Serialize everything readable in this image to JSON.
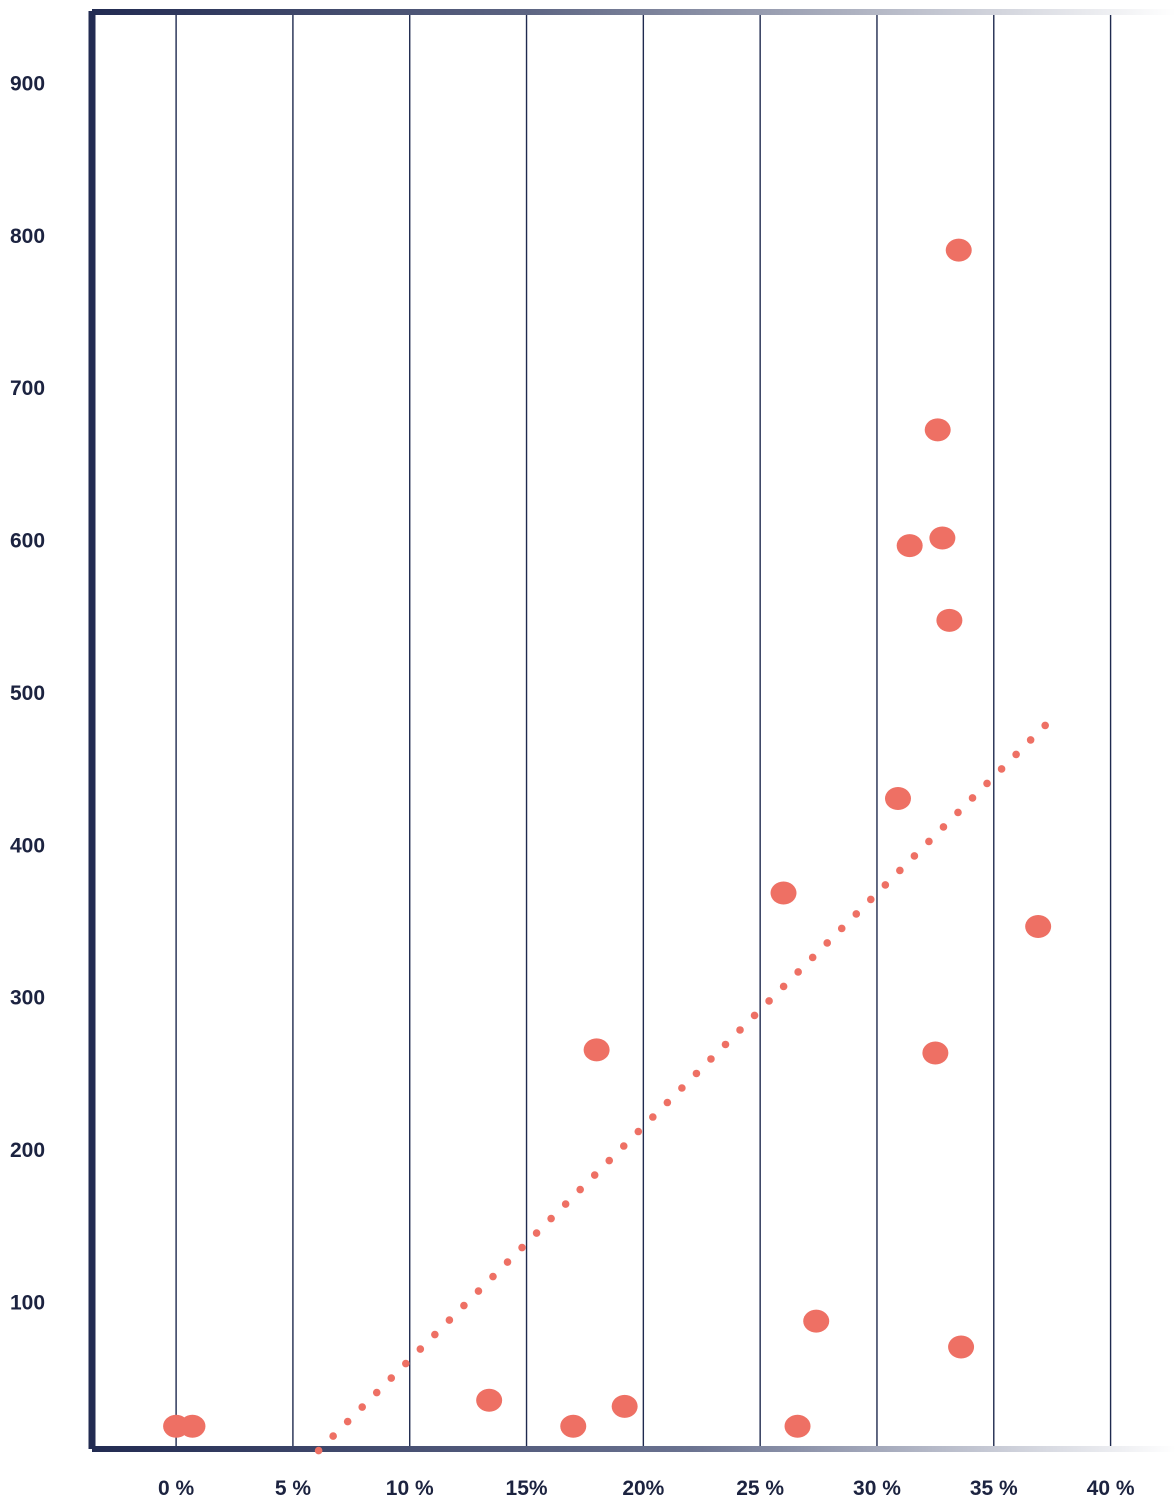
{
  "chart_data": {
    "type": "scatter",
    "title": "",
    "xlabel": "",
    "ylabel": "",
    "x_ticks": [
      0,
      5,
      10,
      15,
      20,
      25,
      30,
      35,
      40
    ],
    "x_tick_labels": [
      "0 %",
      "5 %",
      "10 %",
      "15%",
      "20%",
      "25 %",
      "30 %",
      "35 %",
      "40 %"
    ],
    "y_ticks": [
      100,
      200,
      300,
      400,
      500,
      600,
      700,
      800,
      900
    ],
    "y_tick_labels": [
      "100",
      "200",
      "300",
      "400",
      "500",
      "600",
      "700",
      "800",
      "900"
    ],
    "xlim": [
      -3.6,
      42.8
    ],
    "ylim": [
      5,
      945
    ],
    "grid": true,
    "points": [
      {
        "x": 0.0,
        "y": 18
      },
      {
        "x": 0.7,
        "y": 18
      },
      {
        "x": 13.4,
        "y": 35
      },
      {
        "x": 17.0,
        "y": 18
      },
      {
        "x": 18.0,
        "y": 265
      },
      {
        "x": 19.2,
        "y": 31
      },
      {
        "x": 26.0,
        "y": 368
      },
      {
        "x": 26.6,
        "y": 18
      },
      {
        "x": 27.4,
        "y": 87
      },
      {
        "x": 30.9,
        "y": 430
      },
      {
        "x": 31.4,
        "y": 596
      },
      {
        "x": 32.5,
        "y": 263
      },
      {
        "x": 32.6,
        "y": 672
      },
      {
        "x": 32.8,
        "y": 601
      },
      {
        "x": 33.1,
        "y": 547
      },
      {
        "x": 33.5,
        "y": 790
      },
      {
        "x": 33.6,
        "y": 70
      },
      {
        "x": 36.9,
        "y": 346
      }
    ],
    "trendline": {
      "style": "dotted",
      "x": [
        6.1,
        37.2
      ],
      "y": [
        2,
        478
      ]
    },
    "colors": {
      "points": "#ee7064",
      "trendline": "#ee7064",
      "grid": "#1f2a4f",
      "axis": "#222b52"
    }
  }
}
